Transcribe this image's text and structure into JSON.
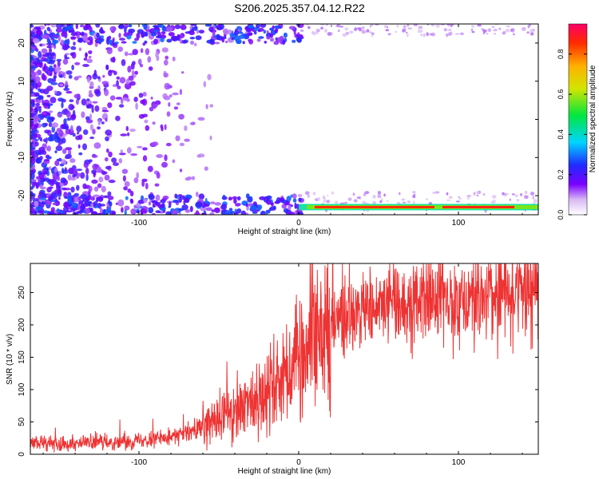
{
  "title": "S206.2025.357.04.12.R22",
  "chart_data": [
    {
      "type": "heatmap",
      "xlabel": "Height of straight line (km)",
      "ylabel": "Frequency (Hz)",
      "xlim": [
        -168,
        150
      ],
      "ylim": [
        -25,
        25
      ],
      "xticks": [
        -100,
        0,
        100
      ],
      "yticks": [
        -20,
        -10,
        0,
        10,
        20
      ],
      "colorbar": {
        "label": "Normalized spectral amplitude",
        "range": [
          0,
          0.95
        ],
        "ticks": [
          0.0,
          0.2,
          0.4,
          0.6,
          0.8
        ]
      },
      "features": [
        {
          "x_start": 0,
          "x_end": 150,
          "frequency": -23,
          "amplitude": 0.9
        },
        {
          "x_start": -168,
          "x_end": -60,
          "frequency_range": [
            -25,
            25
          ],
          "amplitude": 0.15
        }
      ]
    },
    {
      "type": "line",
      "xlabel": "Height of straight line (km)",
      "ylabel": "SNR (10 * v/v)",
      "xlim": [
        -168,
        150
      ],
      "ylim": [
        0,
        295
      ],
      "xticks": [
        -100,
        0,
        100
      ],
      "yticks": [
        0,
        50,
        100,
        150,
        200,
        250
      ],
      "color": "#ee3333",
      "series": [
        {
          "x": [
            -168,
            -150,
            -130,
            -110,
            -90,
            -70,
            -60,
            -50,
            -40,
            -30,
            -20,
            -10,
            0,
            10,
            20,
            30,
            50,
            70,
            90,
            110,
            130,
            150
          ],
          "y": [
            18,
            17,
            18,
            20,
            25,
            32,
            42,
            55,
            65,
            80,
            100,
            125,
            150,
            180,
            200,
            215,
            228,
            235,
            240,
            245,
            250,
            255
          ]
        }
      ]
    }
  ]
}
